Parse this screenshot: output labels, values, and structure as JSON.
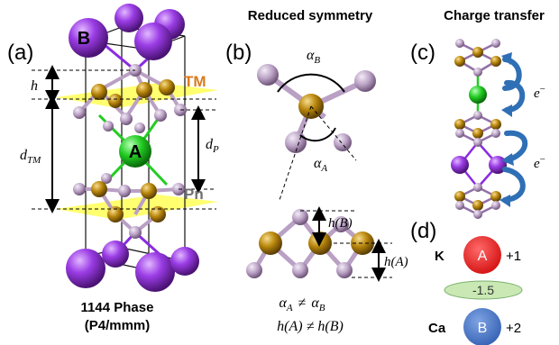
{
  "panels": {
    "a": {
      "label": "(a)",
      "phase": "1144 Phase",
      "space_group": "(P4/mmm)",
      "atom_b": "B",
      "atom_a": "A",
      "tm_label": "TM",
      "pn_label": "Pn",
      "h": "h",
      "d_tm": "d",
      "d_tm_sub": "TM",
      "d_p": "d",
      "d_p_sub": "P"
    },
    "b": {
      "label": "(b)",
      "title": "Reduced symmetry",
      "alpha_b": "α",
      "alpha_b_sub": "B",
      "alpha_a": "α",
      "alpha_a_sub": "A",
      "h_b": "h(B)",
      "h_a": "h(A)",
      "eq1": "α",
      "eq1_sub_a": "A",
      "eq1_neq": "≠",
      "eq1_b": "α",
      "eq1_sub_b": "B",
      "eq2": "h(A) ≠ h(B)"
    },
    "c": {
      "label": "(c)",
      "title": "Charge transfer",
      "electron": "e",
      "electron_sup": "−"
    },
    "d": {
      "label": "(d)",
      "k": "K",
      "ca": "Ca",
      "atom_a": "A",
      "atom_b": "B",
      "charge_a": "+1",
      "charge_b": "+2",
      "diff": "-1.5"
    }
  },
  "colors": {
    "purple": "#8a2be2",
    "gold": "#b8860b",
    "lilac": "#b9a0c4",
    "green": "#22cc22",
    "yellow": "#ffff33",
    "blue_arrow": "#2f6fb5",
    "red": "#e32020",
    "blue_atom": "#4472c4",
    "ellipse": "#c9e8b4",
    "tm_orange": "#d97b20",
    "pn_gray": "#707070"
  }
}
